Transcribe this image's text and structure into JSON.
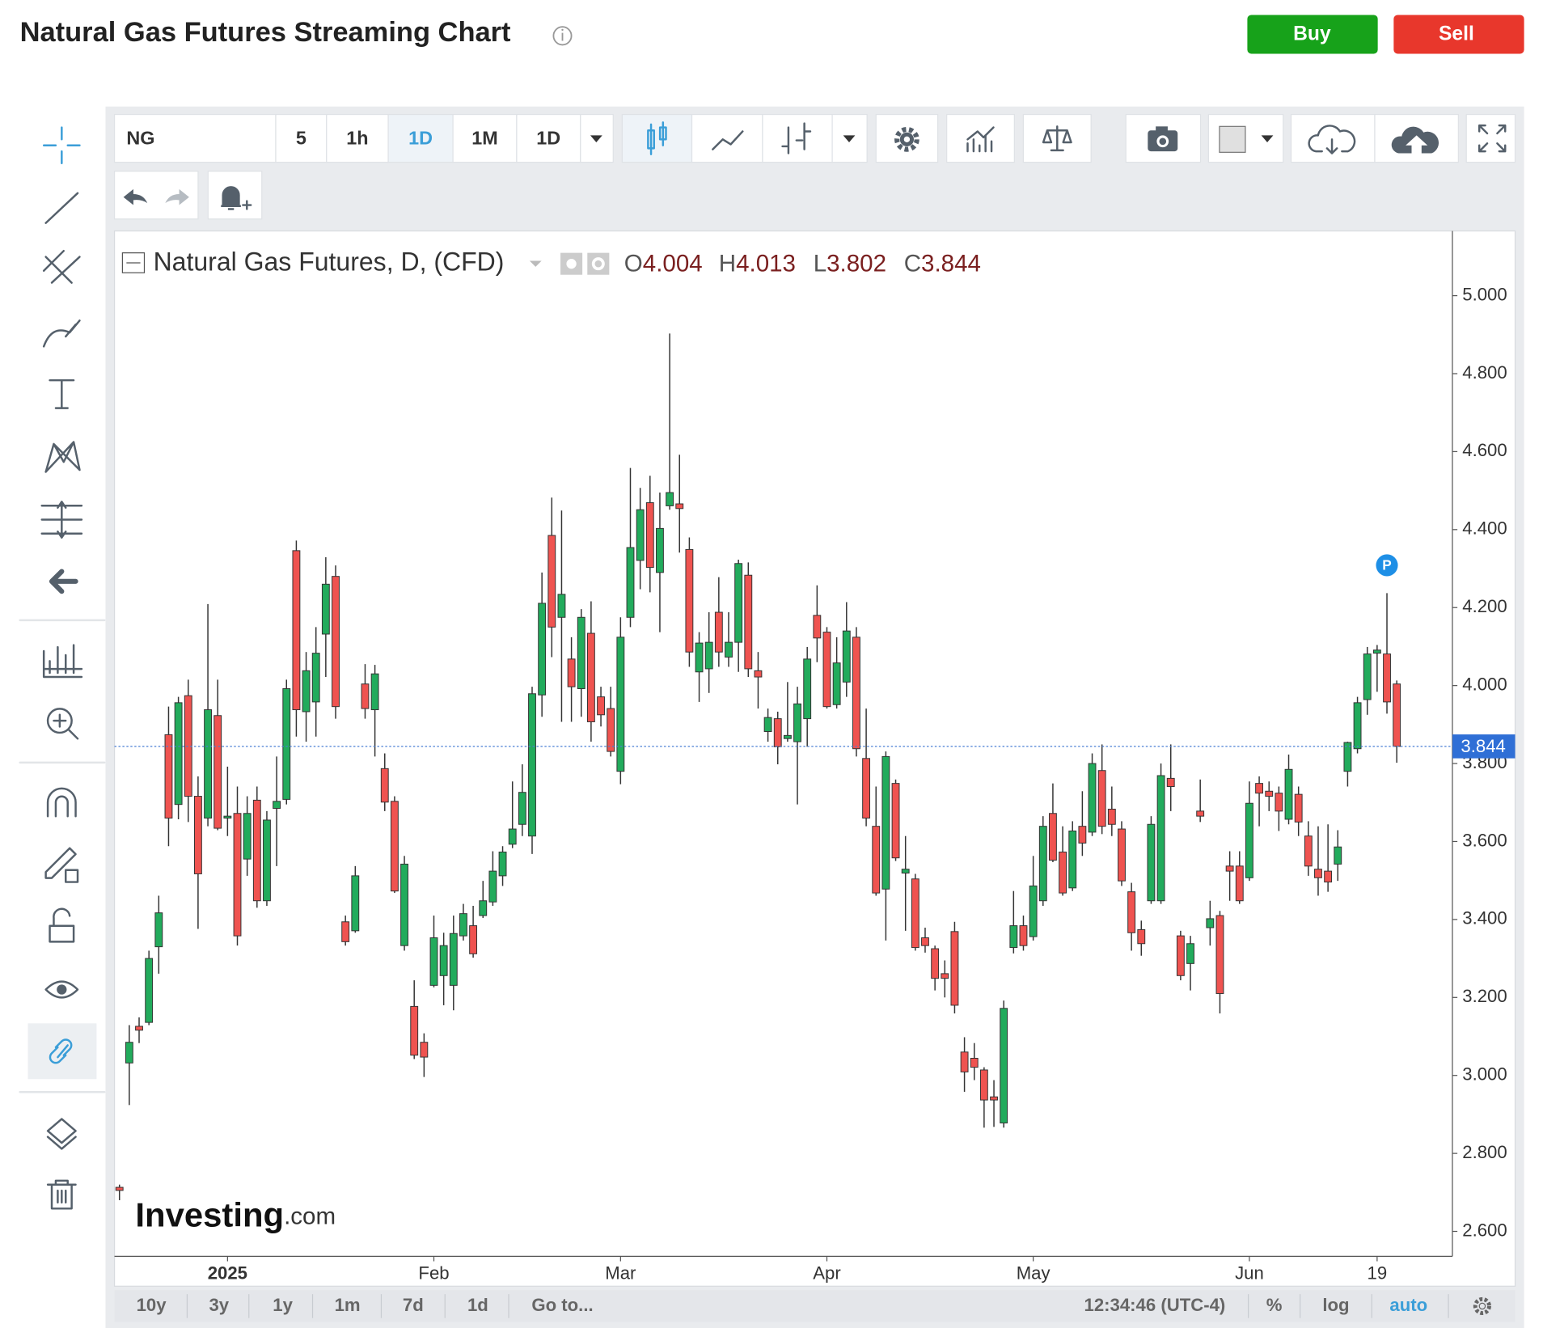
{
  "page": {
    "title": "Natural Gas Futures Streaming Chart",
    "buy": "Buy",
    "sell": "Sell",
    "symbol": "NG",
    "intervals": [
      "5",
      "1h",
      "1D",
      "1M",
      "1D"
    ],
    "active_interval": 2,
    "ranges": [
      "10y",
      "3y",
      "1y",
      "1m",
      "7d",
      "1d",
      "Go to..."
    ],
    "clock": "12:34:46 (UTC-4)",
    "scale_options": [
      "%",
      "log",
      "auto"
    ],
    "active_scale_option": 2,
    "logo": "Investing",
    "logo_suffix": ".com"
  },
  "chart_data": {
    "type": "candlestick",
    "title": "Natural Gas Futures, D, (CFD)",
    "ohlc_keys": [
      "O",
      "H",
      "L",
      "C"
    ],
    "event_marker": "P",
    "up_color": "#22ab5c",
    "down_color": "#ef5350",
    "open": [
      2.713,
      3.032,
      3.126,
      3.136,
      3.33,
      3.874,
      3.695,
      3.974,
      3.716,
      3.66,
      3.923,
      3.66,
      3.672,
      3.555,
      3.706,
      3.448,
      3.685,
      3.708,
      4.346,
      3.933,
      3.958,
      4.132,
      4.28,
      3.394,
      3.371,
      4.004,
      3.938,
      3.787,
      3.703,
      3.333,
      3.177,
      3.085,
      3.231,
      3.256,
      3.231,
      3.358,
      3.384,
      3.41,
      3.445,
      3.512,
      3.593,
      3.644,
      3.614,
      3.976,
      4.385,
      4.175,
      4.068,
      3.992,
      4.134,
      3.971,
      3.941,
      3.78,
      4.175,
      4.321,
      4.469,
      4.29,
      4.461,
      4.466,
      4.349,
      4.035,
      4.043,
      4.188,
      4.073,
      4.111,
      4.283,
      4.038,
      3.882,
      3.915,
      3.864,
      3.856,
      3.915,
      4.18,
      4.137,
      3.951,
      4.009,
      4.124,
      3.813,
      3.639,
      3.478,
      3.749,
      3.519,
      3.504,
      3.353,
      3.325,
      3.261,
      3.369,
      3.06,
      3.044,
      3.014,
      2.945,
      2.878,
      3.328,
      3.384,
      3.356,
      3.448,
      3.672,
      3.573,
      3.481,
      3.639,
      3.624,
      3.782,
      3.683,
      3.632,
      3.471,
      3.374,
      3.448,
      3.448,
      3.762,
      3.358,
      3.287,
      3.678,
      3.379,
      3.41,
      3.537,
      3.537,
      3.507,
      3.749,
      3.729,
      3.724,
      3.657,
      3.721,
      3.614,
      3.529,
      3.524,
      3.542,
      3.78,
      3.838,
      3.964,
      4.083,
      4.081,
      4.004
    ],
    "high": [
      2.72,
      3.129,
      3.149,
      3.32,
      3.461,
      3.946,
      3.971,
      4.015,
      3.767,
      4.209,
      4.015,
      3.792,
      3.741,
      3.716,
      3.741,
      3.678,
      3.818,
      4.015,
      4.372,
      4.086,
      4.15,
      4.329,
      4.308,
      3.41,
      3.537,
      4.055,
      4.053,
      3.826,
      3.716,
      3.563,
      3.244,
      3.108,
      3.41,
      3.366,
      3.41,
      3.44,
      3.435,
      3.499,
      3.575,
      3.588,
      3.754,
      3.798,
      3.997,
      4.29,
      4.482,
      4.449,
      4.124,
      4.196,
      4.216,
      3.997,
      3.997,
      4.175,
      4.558,
      4.507,
      4.538,
      4.495,
      4.903,
      4.592,
      4.38,
      4.137,
      4.188,
      4.278,
      4.188,
      4.323,
      4.316,
      4.086,
      3.941,
      3.933,
      4.009,
      3.997,
      4.099,
      4.257,
      4.15,
      4.124,
      4.214,
      4.15,
      3.941,
      3.741,
      3.831,
      3.759,
      3.614,
      3.517,
      3.379,
      3.333,
      3.295,
      3.394,
      3.098,
      3.083,
      3.021,
      2.988,
      3.192,
      3.473,
      3.41,
      3.563,
      3.665,
      3.749,
      3.639,
      3.652,
      3.729,
      3.826,
      3.849,
      3.741,
      3.652,
      3.494,
      3.397,
      3.665,
      3.8,
      3.849,
      3.371,
      3.358,
      3.759,
      3.448,
      3.422,
      3.575,
      3.575,
      3.754,
      3.767,
      3.754,
      3.741,
      3.823,
      3.741,
      3.652,
      3.639,
      3.644,
      3.629,
      3.856,
      3.971,
      4.099,
      4.104,
      4.237,
      4.013
    ],
    "low": [
      2.68,
      2.924,
      3.083,
      3.129,
      3.261,
      3.588,
      3.657,
      3.65,
      3.376,
      3.639,
      3.629,
      3.614,
      3.333,
      3.512,
      3.43,
      3.435,
      3.537,
      3.695,
      3.869,
      3.856,
      3.869,
      4.022,
      3.915,
      3.333,
      3.366,
      3.915,
      3.818,
      3.678,
      3.468,
      3.32,
      3.042,
      2.996,
      3.226,
      3.18,
      3.167,
      3.346,
      3.302,
      3.404,
      3.435,
      3.486,
      3.583,
      3.614,
      3.568,
      3.92,
      4.073,
      3.907,
      3.907,
      3.92,
      3.856,
      3.895,
      3.818,
      3.747,
      4.15,
      4.247,
      4.239,
      4.137,
      4.451,
      4.341,
      4.048,
      3.958,
      3.981,
      4.048,
      4.048,
      4.035,
      4.022,
      3.941,
      3.856,
      3.798,
      3.856,
      3.695,
      3.843,
      4.06,
      3.941,
      3.941,
      3.971,
      3.818,
      3.639,
      3.461,
      3.346,
      3.55,
      3.371,
      3.32,
      3.315,
      3.218,
      3.2,
      3.159,
      2.958,
      2.988,
      2.866,
      2.868,
      2.866,
      3.313,
      3.32,
      3.346,
      3.435,
      3.547,
      3.461,
      3.473,
      3.563,
      3.614,
      3.619,
      3.614,
      3.486,
      3.32,
      3.307,
      3.44,
      3.44,
      3.678,
      3.244,
      3.218,
      3.65,
      3.333,
      3.159,
      3.448,
      3.44,
      3.499,
      3.639,
      3.678,
      3.627,
      3.644,
      3.614,
      3.512,
      3.461,
      3.471,
      3.499,
      3.741,
      3.826,
      3.925,
      3.984,
      3.928,
      3.802
    ],
    "close": [
      2.705,
      3.085,
      3.116,
      3.3,
      3.417,
      3.66,
      3.956,
      3.716,
      3.517,
      3.938,
      3.634,
      3.665,
      3.358,
      3.672,
      3.448,
      3.655,
      3.703,
      3.992,
      3.938,
      4.038,
      4.083,
      4.26,
      3.946,
      3.343,
      3.512,
      3.941,
      4.03,
      3.701,
      3.473,
      3.542,
      3.052,
      3.047,
      3.353,
      3.333,
      3.364,
      3.415,
      3.312,
      3.448,
      3.524,
      3.573,
      3.632,
      3.726,
      3.979,
      4.211,
      4.15,
      4.234,
      3.997,
      4.175,
      3.907,
      3.925,
      3.831,
      4.124,
      4.354,
      4.451,
      4.303,
      4.403,
      4.495,
      4.454,
      4.086,
      4.109,
      4.111,
      4.086,
      4.111,
      4.313,
      4.043,
      4.022,
      3.918,
      3.843,
      3.872,
      3.953,
      4.068,
      4.122,
      3.946,
      4.058,
      4.14,
      3.838,
      3.66,
      3.468,
      3.818,
      3.558,
      3.529,
      3.328,
      3.333,
      3.249,
      3.249,
      3.18,
      3.009,
      3.021,
      2.937,
      2.937,
      3.172,
      3.384,
      3.333,
      3.486,
      3.639,
      3.552,
      3.468,
      3.627,
      3.596,
      3.8,
      3.639,
      3.644,
      3.499,
      3.366,
      3.338,
      3.644,
      3.769,
      3.741,
      3.256,
      3.338,
      3.665,
      3.402,
      3.21,
      3.524,
      3.448,
      3.698,
      3.724,
      3.716,
      3.678,
      3.785,
      3.65,
      3.537,
      3.507,
      3.496,
      3.586,
      3.854,
      3.956,
      4.081,
      4.091,
      3.958,
      3.844
    ],
    "xticks": [
      {
        "value": 11,
        "label": "2025"
      },
      {
        "value": 32,
        "label": "Feb"
      },
      {
        "value": 51,
        "label": "Mar"
      },
      {
        "value": 72,
        "label": "Apr"
      },
      {
        "value": 93,
        "label": "May"
      },
      {
        "value": 115,
        "label": "Jun"
      },
      {
        "value": 128,
        "label": "19"
      }
    ],
    "ylim": [
      2.536,
      5.166
    ],
    "yticks": [
      {
        "value": 2.6,
        "label": "2.600"
      },
      {
        "value": 2.8,
        "label": "2.800"
      },
      {
        "value": 3,
        "label": "3.000"
      },
      {
        "value": 3.2,
        "label": "3.200"
      },
      {
        "value": 3.4,
        "label": "3.400"
      },
      {
        "value": 3.6,
        "label": "3.600"
      },
      {
        "value": 3.8,
        "label": "3.800"
      },
      {
        "value": 4,
        "label": "4.000"
      },
      {
        "value": 4.2,
        "label": "4.200"
      },
      {
        "value": 4.4,
        "label": "4.400"
      },
      {
        "value": 4.6,
        "label": "4.600"
      },
      {
        "value": 4.8,
        "label": "4.800"
      },
      {
        "value": 5,
        "label": "5.000"
      }
    ],
    "grid": false
  }
}
